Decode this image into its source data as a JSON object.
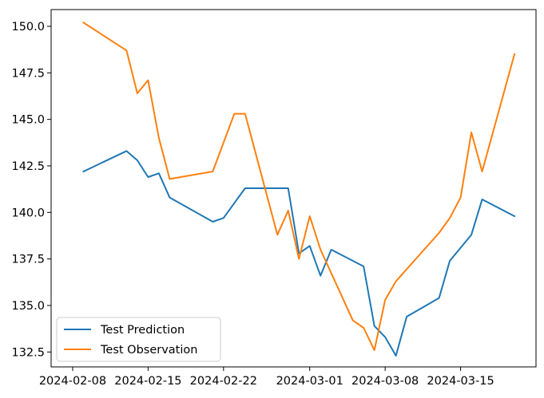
{
  "chart_data": {
    "type": "line",
    "title": "",
    "xlabel": "",
    "ylabel": "",
    "x_axis_type": "date",
    "xlim": [
      "2024-02-06",
      "2024-03-22"
    ],
    "ylim": [
      131.7,
      150.9
    ],
    "x_ticks": [
      "2024-02-08",
      "2024-02-15",
      "2024-02-22",
      "2024-03-01",
      "2024-03-08",
      "2024-03-15"
    ],
    "y_ticks": [
      132.5,
      135.0,
      137.5,
      140.0,
      142.5,
      145.0,
      147.5,
      150.0
    ],
    "y_tick_labels": [
      "132.5",
      "135.0",
      "137.5",
      "140.0",
      "142.5",
      "145.0",
      "147.5",
      "150.0"
    ],
    "grid": false,
    "legend_position": "lower-left",
    "series": [
      {
        "name": "Test Prediction",
        "color": "#1f77b4",
        "points": [
          [
            "2024-02-09",
            142.2
          ],
          [
            "2024-02-13",
            143.3
          ],
          [
            "2024-02-14",
            142.8
          ],
          [
            "2024-02-15",
            141.9
          ],
          [
            "2024-02-16",
            142.1
          ],
          [
            "2024-02-17",
            140.8
          ],
          [
            "2024-02-21",
            139.5
          ],
          [
            "2024-02-22",
            139.7
          ],
          [
            "2024-02-23",
            140.5
          ],
          [
            "2024-02-24",
            141.3
          ],
          [
            "2024-02-27",
            141.3
          ],
          [
            "2024-02-28",
            141.3
          ],
          [
            "2024-02-29",
            137.8
          ],
          [
            "2024-03-01",
            138.2
          ],
          [
            "2024-03-02",
            136.6
          ],
          [
            "2024-03-03",
            138.0
          ],
          [
            "2024-03-06",
            137.1
          ],
          [
            "2024-03-07",
            133.9
          ],
          [
            "2024-03-08",
            133.3
          ],
          [
            "2024-03-09",
            132.3
          ],
          [
            "2024-03-10",
            134.4
          ],
          [
            "2024-03-13",
            135.4
          ],
          [
            "2024-03-14",
            137.4
          ],
          [
            "2024-03-16",
            138.8
          ],
          [
            "2024-03-17",
            140.7
          ],
          [
            "2024-03-20",
            139.8
          ]
        ]
      },
      {
        "name": "Test Observation",
        "color": "#ff7f0e",
        "points": [
          [
            "2024-02-09",
            150.2
          ],
          [
            "2024-02-13",
            148.7
          ],
          [
            "2024-02-14",
            146.4
          ],
          [
            "2024-02-15",
            147.1
          ],
          [
            "2024-02-16",
            144.0
          ],
          [
            "2024-02-17",
            141.8
          ],
          [
            "2024-02-21",
            142.2
          ],
          [
            "2024-02-23",
            145.3
          ],
          [
            "2024-02-24",
            145.3
          ],
          [
            "2024-02-27",
            138.8
          ],
          [
            "2024-02-28",
            140.1
          ],
          [
            "2024-02-29",
            137.5
          ],
          [
            "2024-03-01",
            139.8
          ],
          [
            "2024-03-02",
            138.0
          ],
          [
            "2024-03-05",
            134.2
          ],
          [
            "2024-03-06",
            133.8
          ],
          [
            "2024-03-07",
            132.6
          ],
          [
            "2024-03-08",
            135.3
          ],
          [
            "2024-03-09",
            136.3
          ],
          [
            "2024-03-13",
            138.9
          ],
          [
            "2024-03-14",
            139.7
          ],
          [
            "2024-03-15",
            140.8
          ],
          [
            "2024-03-16",
            144.3
          ],
          [
            "2024-03-17",
            142.2
          ],
          [
            "2024-03-20",
            148.5
          ]
        ]
      }
    ]
  }
}
